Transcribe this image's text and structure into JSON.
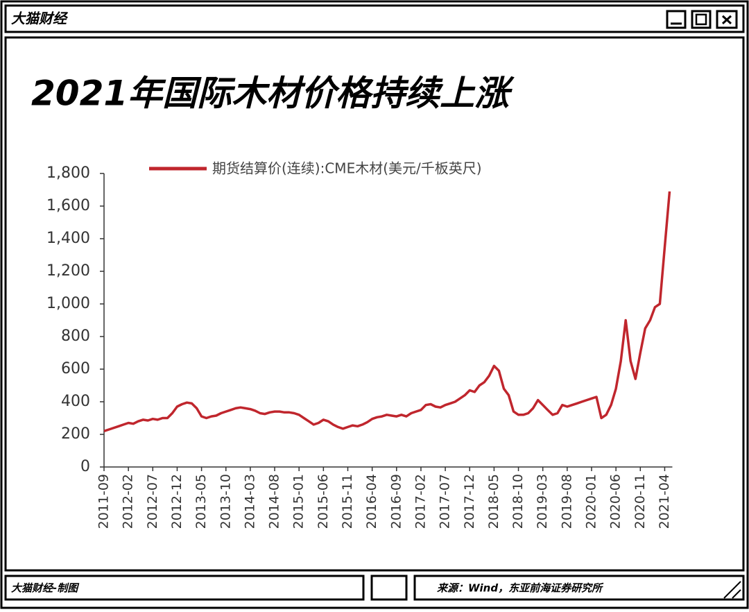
{
  "window": {
    "brand": "大猫财经"
  },
  "chart_data": {
    "type": "line",
    "title": "2021年国际木材价格持续上涨",
    "x": [
      "2011-09",
      "2011-10",
      "2011-11",
      "2011-12",
      "2012-01",
      "2012-02",
      "2012-03",
      "2012-04",
      "2012-05",
      "2012-06",
      "2012-07",
      "2012-08",
      "2012-09",
      "2012-10",
      "2012-11",
      "2012-12",
      "2013-01",
      "2013-02",
      "2013-03",
      "2013-04",
      "2013-05",
      "2013-06",
      "2013-07",
      "2013-08",
      "2013-09",
      "2013-10",
      "2013-11",
      "2013-12",
      "2014-01",
      "2014-02",
      "2014-03",
      "2014-04",
      "2014-05",
      "2014-06",
      "2014-07",
      "2014-08",
      "2014-09",
      "2014-10",
      "2014-11",
      "2014-12",
      "2015-01",
      "2015-02",
      "2015-03",
      "2015-04",
      "2015-05",
      "2015-06",
      "2015-07",
      "2015-08",
      "2015-09",
      "2015-10",
      "2015-11",
      "2015-12",
      "2016-01",
      "2016-02",
      "2016-03",
      "2016-04",
      "2016-05",
      "2016-06",
      "2016-07",
      "2016-08",
      "2016-09",
      "2016-10",
      "2016-11",
      "2016-12",
      "2017-01",
      "2017-02",
      "2017-03",
      "2017-04",
      "2017-05",
      "2017-06",
      "2017-07",
      "2017-08",
      "2017-09",
      "2017-10",
      "2017-11",
      "2017-12",
      "2018-01",
      "2018-02",
      "2018-03",
      "2018-04",
      "2018-05",
      "2018-06",
      "2018-07",
      "2018-08",
      "2018-09",
      "2018-10",
      "2018-11",
      "2018-12",
      "2019-01",
      "2019-02",
      "2019-03",
      "2019-04",
      "2019-05",
      "2019-06",
      "2019-07",
      "2019-08",
      "2019-09",
      "2019-10",
      "2019-11",
      "2019-12",
      "2020-01",
      "2020-02",
      "2020-03",
      "2020-04",
      "2020-05",
      "2020-06",
      "2020-07",
      "2020-08",
      "2020-09",
      "2020-10",
      "2020-11",
      "2020-12",
      "2021-01",
      "2021-02",
      "2021-03",
      "2021-04",
      "2021-05"
    ],
    "series": [
      {
        "name": "期货结算价(连续):CME木材(美元/千板英尺)",
        "color": "#c0262d",
        "values": [
          220,
          230,
          240,
          250,
          260,
          270,
          265,
          280,
          290,
          285,
          295,
          290,
          300,
          300,
          330,
          370,
          385,
          395,
          390,
          360,
          310,
          300,
          310,
          315,
          330,
          340,
          350,
          360,
          365,
          360,
          355,
          345,
          330,
          325,
          335,
          340,
          340,
          335,
          335,
          330,
          320,
          300,
          280,
          260,
          270,
          290,
          280,
          260,
          245,
          235,
          245,
          255,
          250,
          260,
          275,
          295,
          305,
          310,
          320,
          315,
          310,
          320,
          310,
          330,
          340,
          350,
          380,
          385,
          370,
          365,
          380,
          390,
          400,
          420,
          440,
          470,
          460,
          500,
          520,
          560,
          620,
          590,
          480,
          440,
          340,
          320,
          320,
          330,
          360,
          410,
          380,
          350,
          320,
          330,
          380,
          370,
          380,
          390,
          400,
          410,
          420,
          430,
          300,
          320,
          380,
          480,
          650,
          900,
          650,
          540,
          700,
          850,
          900,
          980,
          1000,
          1350,
          1690
        ]
      }
    ],
    "xticks": [
      "2011-09",
      "2012-02",
      "2012-07",
      "2012-12",
      "2013-05",
      "2013-10",
      "2014-03",
      "2014-08",
      "2015-01",
      "2015-06",
      "2015-11",
      "2016-04",
      "2016-09",
      "2017-02",
      "2017-07",
      "2017-12",
      "2018-05",
      "2018-10",
      "2019-03",
      "2019-08",
      "2020-01",
      "2020-06",
      "2020-11",
      "2021-04"
    ],
    "ylim": [
      0,
      1800
    ],
    "yticks": [
      0,
      200,
      400,
      600,
      800,
      {
        "value": 1000,
        "label": "1,000"
      },
      {
        "value": 1200,
        "label": "1,200"
      },
      {
        "value": 1400,
        "label": "1,400"
      },
      {
        "value": 1600,
        "label": "1,600"
      },
      {
        "value": 1800,
        "label": "1,800"
      }
    ],
    "grid": false
  },
  "footer": {
    "credit": "大猫财经-制图",
    "source": "来源：Wind，东亚前海证券研究所"
  }
}
